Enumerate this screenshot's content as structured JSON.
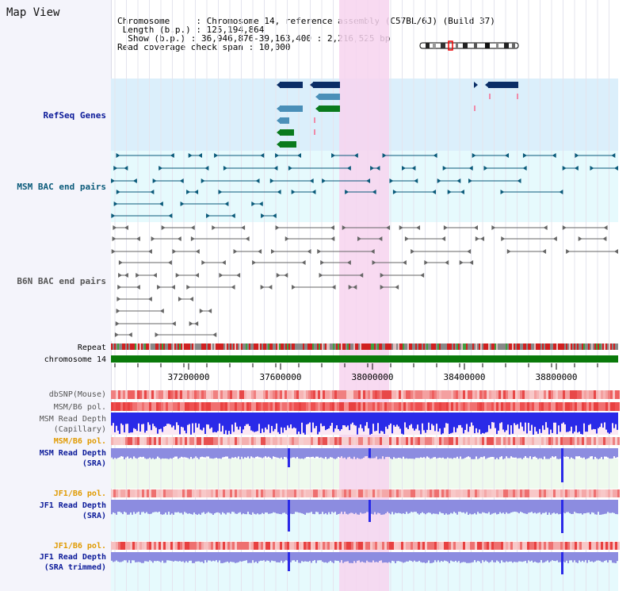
{
  "page": {
    "title": "Map View"
  },
  "info": {
    "chromosome": "Chromosome     : Chromosome 14, reference assembly (C57BL/6J) (Build 37)",
    "length": " Length (b.p.) : 125,194,864",
    "show": "  Show (b.p.) : 36,946,876-39,163,400 : 2,216,525 bp",
    "coverage": "Read coverage check span : 10,000"
  },
  "labels": {
    "refseq": "RefSeq Genes",
    "msm_bac": "MSM BAC end pairs",
    "b6n_bac": "B6N BAC end pairs",
    "repeat": "Repeat",
    "chromosome": "chromosome 14",
    "dbsnp": "dbSNP(Mouse)",
    "msm_b6_pol": "MSM/B6 pol.",
    "msm_read_depth_cap": "MSM Read Depth\n(Capillary)",
    "msm_b6_pol2": "MSM/B6 pol.",
    "msm_read_depth_sra": "MSM Read Depth\n(SRA)",
    "jf1_b6_pol": "JF1/B6 pol.",
    "jf1_read_depth_sra": "JF1 Read Depth\n(SRA)",
    "jf1_b6_pol2": "JF1/B6 pol.",
    "jf1_read_depth_trim": "JF1 Read Depth\n(SRA trimmed)"
  },
  "axis": {
    "ticks": [
      "37200000",
      "37600000",
      "38000000",
      "38400000",
      "38800000"
    ]
  },
  "colors": {
    "refseq_bg": "#dbeffb",
    "bac_bg": "#e6fafd",
    "highlight": "#f7d4ef",
    "label_blue": "#0b1a99",
    "label_teal": "#0a5a7a",
    "label_gray": "#555555",
    "label_orange": "#e09a00",
    "gene_navy": "#0b2d66",
    "gene_blue": "#4a8fb8",
    "gene_green": "#0a7a1c",
    "depth_blue": "#2a2ae8",
    "depth_light": "#8c8ce0",
    "chrom_green": "#0a7a0a"
  }
}
